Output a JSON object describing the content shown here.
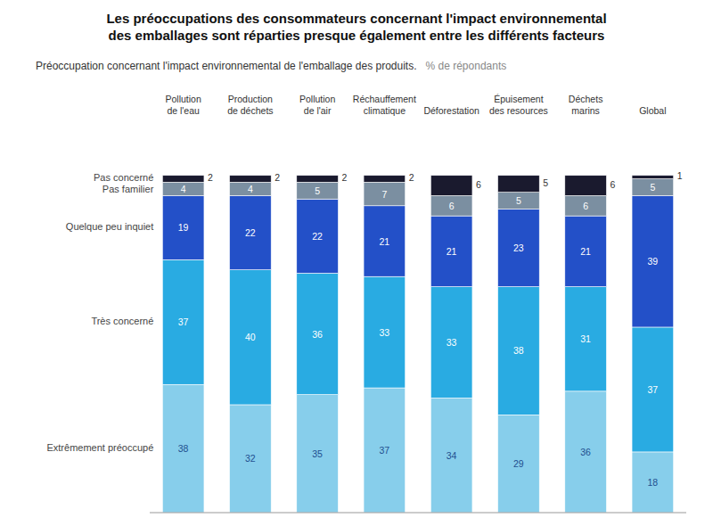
{
  "chart_data": {
    "type": "bar",
    "stacked": true,
    "title": "Les préoccupations des consommateurs concernant l'impact environnemental\ndes emballages sont réparties presque également entre les différents facteurs",
    "subtitle": "Préoccupation concernant l'impact environnemental de l'emballage des produits.",
    "ylabel": "% de répondants",
    "categories": [
      "Pollution\nde l'eau",
      "Production\nde déchets",
      "Pollution\nde l'air",
      "Réchauffement\nclimatique",
      "Déforestation",
      "Épuisement\ndes resources",
      "Déchets\nmarins",
      "Global"
    ],
    "series": [
      {
        "name": "Extrêmement préoccupé",
        "color": "#87CEEB",
        "values": [
          38,
          32,
          35,
          37,
          34,
          29,
          36,
          18
        ]
      },
      {
        "name": "Très concerné",
        "color": "#29ABE2",
        "values": [
          37,
          40,
          36,
          33,
          33,
          38,
          31,
          37
        ]
      },
      {
        "name": "Quelque peu inquiet",
        "color": "#2350C8",
        "values": [
          19,
          22,
          22,
          21,
          21,
          23,
          21,
          39
        ]
      },
      {
        "name": "Pas familier",
        "color": "#7B8FA1",
        "values": [
          4,
          4,
          5,
          7,
          6,
          5,
          6,
          5
        ]
      },
      {
        "name": "Pas concerné",
        "color": "#1A1A2E",
        "values": [
          2,
          2,
          2,
          2,
          6,
          5,
          6,
          1
        ]
      }
    ],
    "ylim": [
      0,
      115
    ],
    "tick_labels": false,
    "grid": false,
    "data_labels": true
  }
}
